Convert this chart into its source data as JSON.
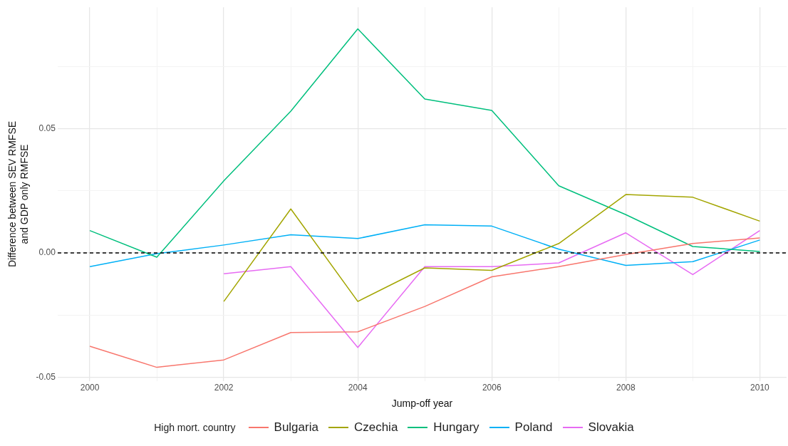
{
  "chart_data": {
    "type": "line",
    "xlabel": "Jump-off year",
    "ylabel": "Difference between SEV RMFSE\nand GDP only RMFSE",
    "legend_title": "High mort. country",
    "legend": "bottom",
    "grid": true,
    "marker": "none",
    "line_style": "solid",
    "x": [
      2000,
      2001,
      2002,
      2003,
      2004,
      2005,
      2006,
      2007,
      2008,
      2009,
      2010
    ],
    "xlim": [
      1999.52,
      2010.4
    ],
    "xticks": [
      2000,
      {
        "value": 2001,
        "label": null
      },
      2002,
      {
        "value": 2003,
        "label": null
      },
      2004,
      {
        "value": 2005,
        "label": null
      },
      2006,
      {
        "value": 2007,
        "label": null
      },
      2008,
      {
        "value": 2009,
        "label": null
      },
      2010
    ],
    "ylim": [
      -0.0515,
      0.0988
    ],
    "yticks": [
      {
        "value": -0.05,
        "label": "-0.05"
      },
      {
        "value": -0.025,
        "label": null
      },
      {
        "value": 0,
        "label": "0.00"
      },
      {
        "value": 0.025,
        "label": null
      },
      {
        "value": 0.05,
        "label": "0.05"
      },
      {
        "value": 0.075,
        "label": null
      }
    ],
    "ref_lines": [
      {
        "axis": "y",
        "value": 0,
        "label": null,
        "color": "#000000",
        "line_style": "dashed"
      }
    ],
    "series": [
      {
        "name": "Bulgaria",
        "color": "#f8766d",
        "values": [
          -0.0375,
          -0.046,
          -0.043,
          -0.032,
          -0.0317,
          -0.0215,
          -0.0096,
          -0.0055,
          -0.0006,
          0.0038,
          0.006
        ]
      },
      {
        "name": "Czechia",
        "color": "#a3a500",
        "values": [
          null,
          null,
          -0.0195,
          0.0177,
          -0.0195,
          -0.006,
          -0.007,
          0.0038,
          0.0235,
          0.0224,
          0.0128
        ]
      },
      {
        "name": "Hungary",
        "color": "#00bf7d",
        "values": [
          0.009,
          -0.0017,
          0.029,
          0.057,
          0.0901,
          0.0619,
          0.0573,
          0.027,
          0.0154,
          0.0026,
          0.0006
        ]
      },
      {
        "name": "Poland",
        "color": "#00b0f6",
        "values": [
          -0.0055,
          -0.0003,
          0.0032,
          0.0073,
          0.0058,
          0.0113,
          0.0108,
          0.0015,
          -0.005,
          -0.0035,
          0.0052
        ]
      },
      {
        "name": "Slovakia",
        "color": "#e76bf3",
        "values": [
          null,
          null,
          -0.0084,
          -0.0055,
          -0.038,
          -0.0055,
          -0.0055,
          -0.004,
          0.0081,
          -0.0087,
          0.009
        ]
      }
    ]
  }
}
